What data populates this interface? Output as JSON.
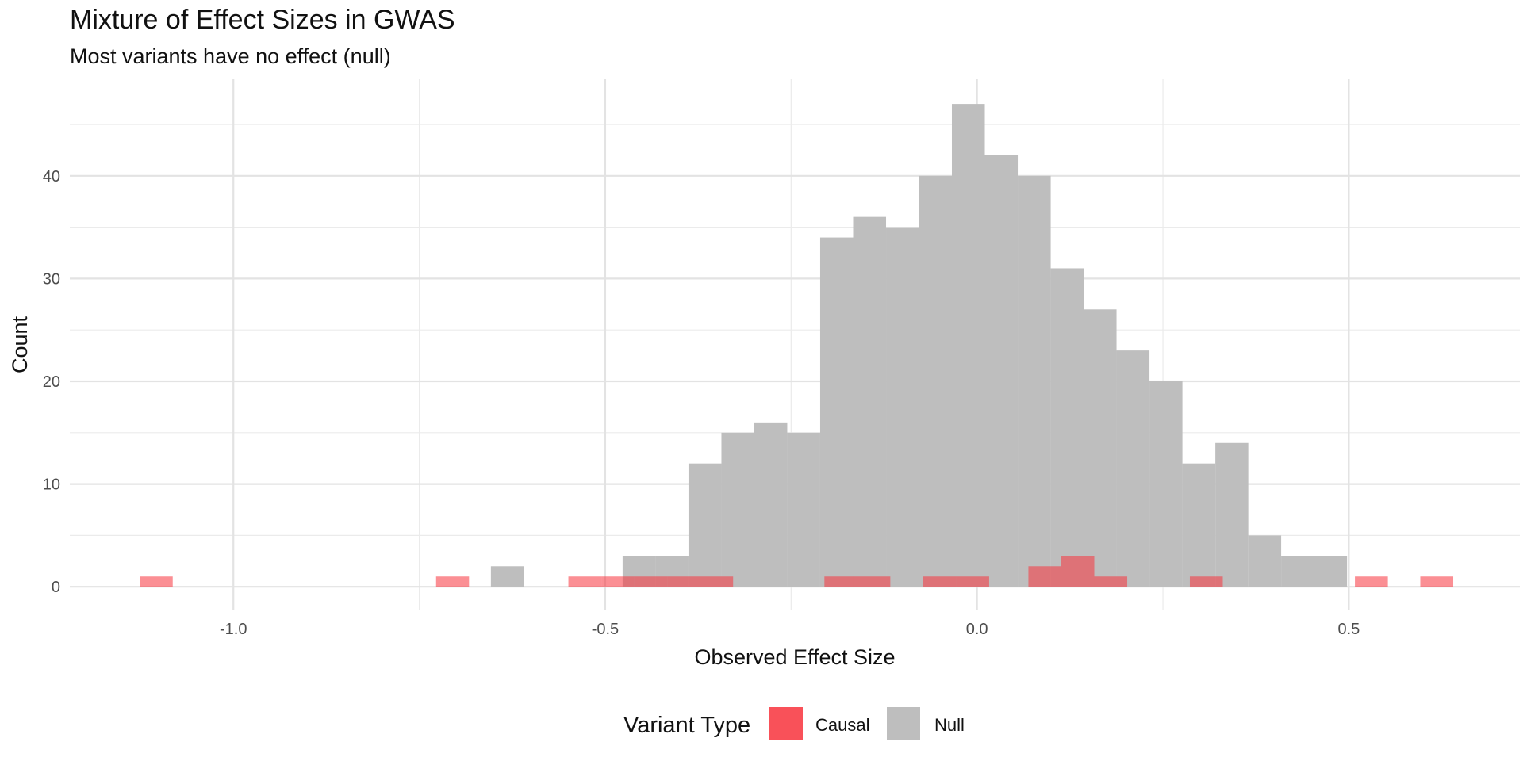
{
  "chart_data": {
    "type": "histogram",
    "title": "Mixture of Effect Sizes in GWAS",
    "subtitle": "Most variants have no effect (null)",
    "xlabel": "Observed Effect Size",
    "ylabel": "Count",
    "xlim": [
      -1.22,
      0.73
    ],
    "ylim": [
      -2.3,
      49.4
    ],
    "x_ticks": [
      -1.0,
      -0.5,
      0.0,
      0.5
    ],
    "x_tick_labels": [
      "-1.0",
      "-0.5",
      "0.0",
      "0.5"
    ],
    "y_ticks": [
      0,
      10,
      20,
      30,
      40
    ],
    "y_tick_labels": [
      "0",
      "10",
      "20",
      "30",
      "40"
    ],
    "grid": true,
    "bin_width": 0.0443,
    "series": [
      {
        "name": "Null",
        "color": "#bebebe",
        "bins": [
          {
            "x0": -0.6537,
            "x1": -0.6094,
            "count": 2
          },
          {
            "x0": -0.4766,
            "x1": -0.4323,
            "count": 3
          },
          {
            "x0": -0.4323,
            "x1": -0.388,
            "count": 3
          },
          {
            "x0": -0.388,
            "x1": -0.3437,
            "count": 12
          },
          {
            "x0": -0.3437,
            "x1": -0.2994,
            "count": 15
          },
          {
            "x0": -0.2994,
            "x1": -0.2552,
            "count": 16
          },
          {
            "x0": -0.2552,
            "x1": -0.2109,
            "count": 15
          },
          {
            "x0": -0.2109,
            "x1": -0.1666,
            "count": 34
          },
          {
            "x0": -0.1666,
            "x1": -0.1223,
            "count": 36
          },
          {
            "x0": -0.1223,
            "x1": -0.078,
            "count": 35
          },
          {
            "x0": -0.078,
            "x1": -0.0338,
            "count": 40
          },
          {
            "x0": -0.0338,
            "x1": 0.0105,
            "count": 47
          },
          {
            "x0": 0.0105,
            "x1": 0.0548,
            "count": 42
          },
          {
            "x0": 0.0548,
            "x1": 0.0991,
            "count": 40
          },
          {
            "x0": 0.0991,
            "x1": 0.1434,
            "count": 31
          },
          {
            "x0": 0.1434,
            "x1": 0.1876,
            "count": 27
          },
          {
            "x0": 0.1876,
            "x1": 0.2319,
            "count": 23
          },
          {
            "x0": 0.2319,
            "x1": 0.2762,
            "count": 20
          },
          {
            "x0": 0.2762,
            "x1": 0.3205,
            "count": 12
          },
          {
            "x0": 0.3205,
            "x1": 0.3648,
            "count": 14
          },
          {
            "x0": 0.3648,
            "x1": 0.409,
            "count": 5
          },
          {
            "x0": 0.409,
            "x1": 0.4533,
            "count": 3
          },
          {
            "x0": 0.4533,
            "x1": 0.4976,
            "count": 3
          }
        ]
      },
      {
        "name": "Causal",
        "color": "#f8333c",
        "bins": [
          {
            "x0": -1.1259,
            "x1": -1.0816,
            "count": 1
          },
          {
            "x0": -0.7274,
            "x1": -0.6831,
            "count": 1
          },
          {
            "x0": -0.5495,
            "x1": -0.5052,
            "count": 1
          },
          {
            "x0": -0.5052,
            "x1": -0.4609,
            "count": 1
          },
          {
            "x0": -0.4609,
            "x1": -0.4166,
            "count": 1
          },
          {
            "x0": -0.4166,
            "x1": -0.3723,
            "count": 1
          },
          {
            "x0": -0.3723,
            "x1": -0.328,
            "count": 1
          },
          {
            "x0": -0.2052,
            "x1": -0.1609,
            "count": 1
          },
          {
            "x0": -0.1609,
            "x1": -0.1166,
            "count": 1
          },
          {
            "x0": -0.0723,
            "x1": -0.028,
            "count": 1
          },
          {
            "x0": -0.028,
            "x1": 0.0163,
            "count": 1
          },
          {
            "x0": 0.0691,
            "x1": 0.1134,
            "count": 2
          },
          {
            "x0": 0.1134,
            "x1": 0.1577,
            "count": 3
          },
          {
            "x0": 0.1577,
            "x1": 0.202,
            "count": 1
          },
          {
            "x0": 0.2862,
            "x1": 0.3305,
            "count": 1
          },
          {
            "x0": 0.5082,
            "x1": 0.5525,
            "count": 1
          },
          {
            "x0": 0.5961,
            "x1": 0.6404,
            "count": 1
          }
        ]
      }
    ],
    "legend": {
      "title": "Variant Type",
      "position": "bottom",
      "entries": [
        {
          "label": "Causal",
          "color": "#f8333c"
        },
        {
          "label": "Null",
          "color": "#bebebe"
        }
      ]
    }
  }
}
